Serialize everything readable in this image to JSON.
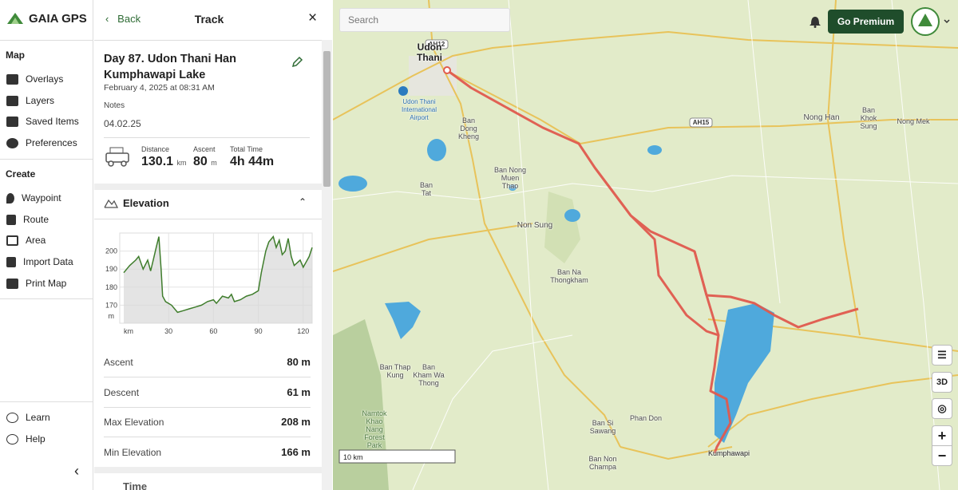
{
  "sidebar": {
    "brand": "GAIA GPS",
    "map_section": "Map",
    "map_items": [
      "Overlays",
      "Layers",
      "Saved Items",
      "Preferences"
    ],
    "create_section": "Create",
    "create_items": [
      "Waypoint",
      "Route",
      "Area",
      "Import Data",
      "Print Map"
    ],
    "footer_items": [
      "Learn",
      "Help"
    ]
  },
  "panel": {
    "back": "Back",
    "title": "Track",
    "track_name": "Day 87. Udon Thani Han Kumphawapi Lake",
    "date": "February 4, 2025 at 08:31 AM",
    "notes_label": "Notes",
    "notes": "04.02.25",
    "stats": [
      {
        "label": "Distance",
        "value": "130.1",
        "unit": "km"
      },
      {
        "label": "Ascent",
        "value": "80",
        "unit": "m"
      },
      {
        "label": "Total Time",
        "value": "4h 44m"
      }
    ],
    "elevation_title": "Elevation",
    "details": [
      {
        "label": "Ascent",
        "value": "80 m"
      },
      {
        "label": "Descent",
        "value": "61 m"
      },
      {
        "label": "Max Elevation",
        "value": "208 m"
      },
      {
        "label": "Min Elevation",
        "value": "166 m"
      }
    ],
    "next_section": "Time"
  },
  "chart_data": {
    "type": "line",
    "x_unit": "km",
    "y_unit": "m",
    "x": [
      0,
      4,
      8,
      10,
      13,
      16,
      18,
      20,
      22,
      23.5,
      25,
      26,
      28,
      32,
      36,
      40,
      44,
      48,
      52,
      56,
      60,
      62,
      66,
      70,
      72,
      74,
      78,
      82,
      86,
      90,
      92,
      95,
      97,
      100,
      102,
      104,
      106,
      108,
      110,
      112,
      114,
      118,
      120,
      124,
      126
    ],
    "values": [
      188,
      192,
      195,
      197,
      190,
      195,
      189,
      196,
      203,
      208,
      190,
      175,
      172,
      170,
      166,
      167,
      168,
      169,
      170,
      172,
      173,
      171,
      175,
      174,
      176,
      172,
      173,
      175,
      176,
      178,
      188,
      200,
      205,
      208,
      202,
      206,
      198,
      200,
      207,
      197,
      192,
      195,
      191,
      197,
      202
    ],
    "color": "#3f7d2c",
    "xlim": [
      0,
      126
    ],
    "ylim": [
      160,
      210
    ],
    "xticks": [
      30,
      60,
      90,
      120
    ],
    "yticks": [
      170,
      180,
      190,
      200
    ],
    "grid": true
  },
  "map": {
    "search_placeholder": "Search",
    "premium": "Go Premium",
    "button_3d": "3D",
    "scale": "10 km",
    "roads": [
      "AH12",
      "AH15"
    ],
    "labels": [
      "Udon Thani",
      "Udon Thani International Airport",
      "Ban Dong Kheng",
      "Ban Nong Muen Thao",
      "Ban Tat",
      "Non Sung",
      "Ban Na Thongkham",
      "Nong Han",
      "Ban Khok Sung",
      "Nong Mek",
      "Ban Thap Kung",
      "Ban Kham Wa Thong",
      "Namtok Khao Nang Forest Park",
      "Ban Si Sawang",
      "Phan Don",
      "Ban Non Champa",
      "Kumphawapi"
    ]
  }
}
